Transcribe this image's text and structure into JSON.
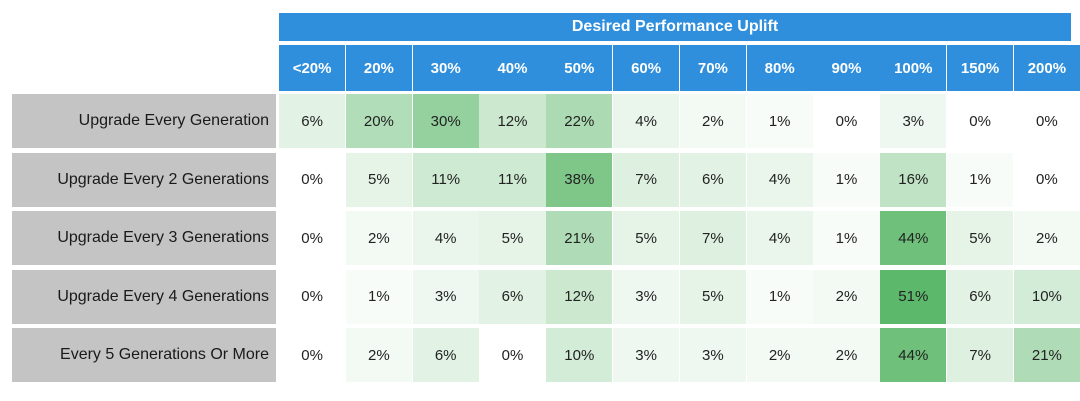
{
  "chart_data": {
    "type": "heatmap",
    "title": "Desired Performance Uplift",
    "columns": [
      "<20%",
      "20%",
      "30%",
      "40%",
      "50%",
      "60%",
      "70%",
      "80%",
      "90%",
      "100%",
      "150%",
      "200%"
    ],
    "rows": [
      "Upgrade Every Generation",
      "Upgrade Every 2 Generations",
      "Upgrade Every 3 Generations",
      "Upgrade Every 4 Generations",
      "Every 5 Generations Or More"
    ],
    "values": [
      [
        6,
        20,
        30,
        12,
        22,
        4,
        2,
        1,
        0,
        3,
        0,
        0
      ],
      [
        0,
        5,
        11,
        11,
        38,
        7,
        6,
        4,
        1,
        16,
        1,
        0
      ],
      [
        0,
        2,
        4,
        5,
        21,
        5,
        7,
        4,
        1,
        44,
        5,
        2
      ],
      [
        0,
        1,
        3,
        6,
        12,
        3,
        5,
        1,
        2,
        51,
        6,
        10
      ],
      [
        0,
        2,
        6,
        0,
        10,
        3,
        3,
        2,
        2,
        44,
        7,
        21
      ]
    ],
    "value_suffix": "%",
    "colors": {
      "header_bg": "#2f8fdd",
      "header_text": "#ffffff",
      "row_header_bg": "#c4c4c4",
      "scale_low": "#ffffff",
      "scale_high": "#5cb86a"
    }
  }
}
